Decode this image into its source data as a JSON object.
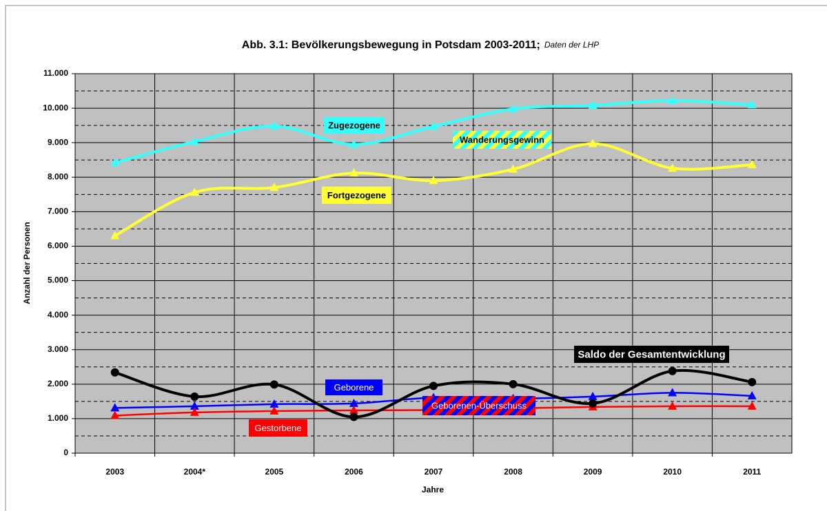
{
  "chart_data": {
    "type": "line",
    "title": "Abb. 3.1: Bevölkerungsbewegung in Potsdam 2003-2011;",
    "subtitle": "Daten der LHP",
    "x_label": "Jahre",
    "y_label": "Anzahl der Personen",
    "categories": [
      "2003",
      "2004*",
      "2005",
      "2006",
      "2007",
      "2008",
      "2009",
      "2010",
      "2011"
    ],
    "series": [
      {
        "name": "Zugezogene",
        "color": "#33ffff",
        "marker": "triangle",
        "values": [
          8420,
          9030,
          9480,
          8950,
          9470,
          9980,
          10080,
          10220,
          10100
        ]
      },
      {
        "name": "Fortgezogene",
        "color": "#ffff33",
        "marker": "triangle",
        "values": [
          6300,
          7560,
          7700,
          8120,
          7900,
          8230,
          8970,
          8260,
          8360
        ]
      },
      {
        "name": "Geborene",
        "color": "#0000ff",
        "marker": "triangle",
        "values": [
          1310,
          1360,
          1420,
          1440,
          1610,
          1580,
          1640,
          1750,
          1660
        ]
      },
      {
        "name": "Gestorbene",
        "color": "#ff0000",
        "marker": "triangle",
        "values": [
          1090,
          1180,
          1220,
          1240,
          1250,
          1300,
          1340,
          1360,
          1360
        ]
      },
      {
        "name": "Saldo der Gesamtentwicklung",
        "color": "#000000",
        "marker": "circle",
        "values": [
          2340,
          1640,
          1990,
          1050,
          1950,
          2000,
          1440,
          2380,
          2060
        ]
      }
    ],
    "annotations": [
      "Zugezogene",
      "Wanderungsgewinn",
      "Fortgezogene",
      "Geborene",
      "Geborenen-Überschuss",
      "Gestorbene",
      "Saldo der Gesamtentwicklung"
    ],
    "ylim": [
      0,
      11000
    ],
    "yticks": [
      0,
      {
        "value": 1000,
        "label": "1.000"
      },
      {
        "value": 2000,
        "label": "2.000"
      },
      {
        "value": 3000,
        "label": "3.000"
      },
      {
        "value": 4000,
        "label": "4.000"
      },
      {
        "value": 5000,
        "label": "5.000"
      },
      {
        "value": 6000,
        "label": "6.000"
      },
      {
        "value": 7000,
        "label": "7.000"
      },
      {
        "value": 8000,
        "label": "8.000"
      },
      {
        "value": 9000,
        "label": "9.000"
      },
      {
        "value": 10000,
        "label": "10.000"
      },
      {
        "value": 11000,
        "label": "11.000"
      }
    ],
    "yminor": [
      500,
      1500,
      2500,
      3500,
      4500,
      5500,
      6500,
      7500,
      8500,
      9500,
      10500
    ],
    "grid": true,
    "background": "#c0c0c0"
  }
}
